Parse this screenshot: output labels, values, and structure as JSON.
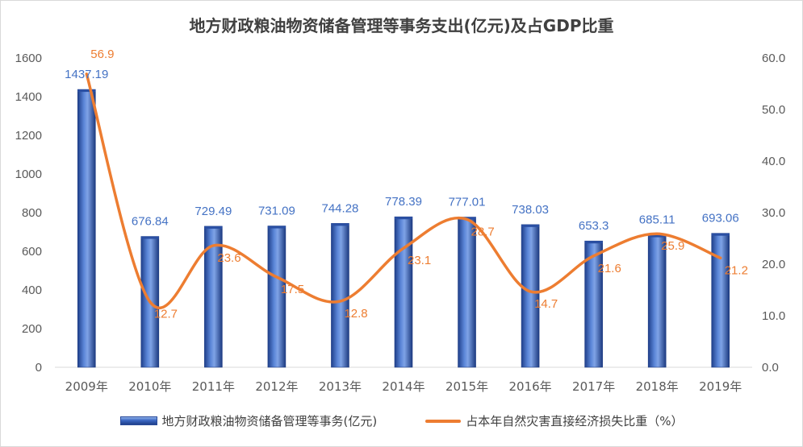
{
  "chart_data": {
    "type": "bar",
    "title": "地方财政粮油物资储备管理等事务支出(亿元)及占GDP比重",
    "categories": [
      "2009年",
      "2010年",
      "2011年",
      "2012年",
      "2013年",
      "2014年",
      "2015年",
      "2016年",
      "2017年",
      "2018年",
      "2019年"
    ],
    "series": [
      {
        "name": "地方财政粮油物资储备管理等事务(亿元)",
        "type": "bar",
        "axis": "left",
        "color": "#4472C4",
        "values": [
          1437.19,
          676.84,
          729.49,
          731.09,
          744.28,
          778.39,
          777.01,
          738.03,
          653.3,
          685.11,
          693.06
        ],
        "labels": [
          "1437.19",
          "676.84",
          "729.49",
          "731.09",
          "744.28",
          "778.39",
          "777.01",
          "738.03",
          "653.3",
          "685.11",
          "693.06"
        ]
      },
      {
        "name": "占本年自然灾害直接经济损失比重（%）",
        "type": "line",
        "axis": "right",
        "color": "#ED7D31",
        "values": [
          56.9,
          12.7,
          23.6,
          17.5,
          12.8,
          23.1,
          28.7,
          14.7,
          21.6,
          25.9,
          21.2
        ],
        "labels": [
          "56.9",
          "12.7",
          "23.6",
          "17.5",
          "12.8",
          "23.1",
          "28.7",
          "14.7",
          "21.6",
          "25.9",
          "21.2"
        ]
      }
    ],
    "y_left": {
      "ylim": [
        0,
        1600
      ],
      "ticks": [
        "0",
        "200",
        "400",
        "600",
        "800",
        "1000",
        "1200",
        "1400",
        "1600"
      ]
    },
    "y_right": {
      "ylim": [
        0,
        60
      ],
      "ticks": [
        "0.0",
        "10.0",
        "20.0",
        "30.0",
        "40.0",
        "50.0",
        "60.0"
      ]
    },
    "grid": false,
    "legend": "bottom"
  }
}
